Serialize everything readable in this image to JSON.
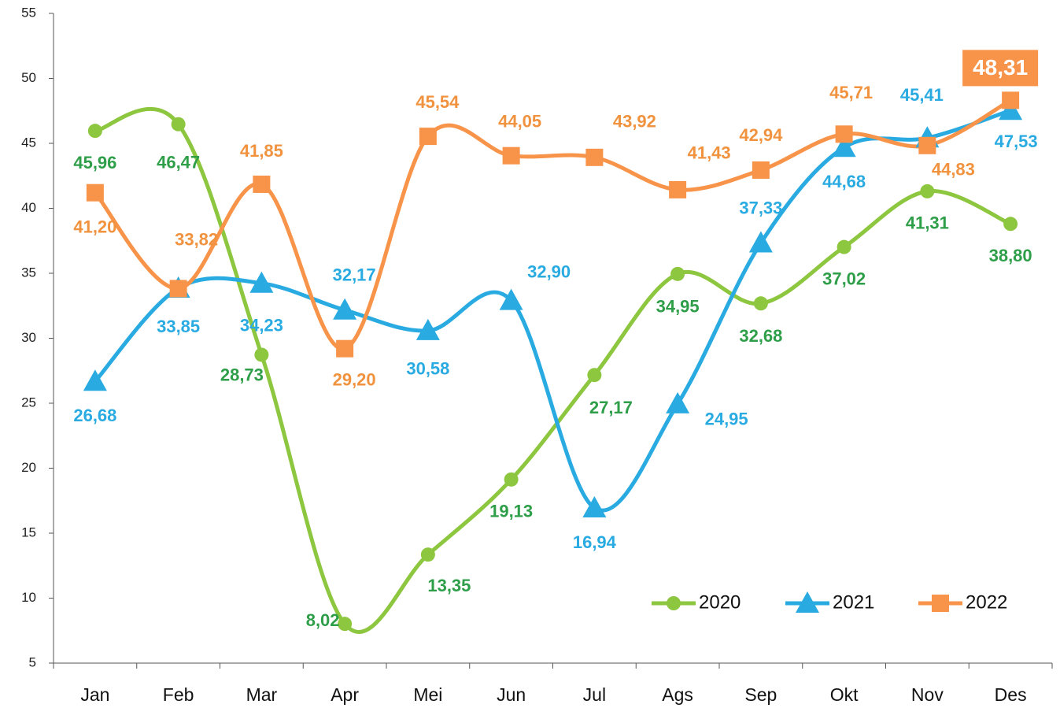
{
  "chart_data": {
    "type": "line",
    "categories": [
      "Jan",
      "Feb",
      "Mar",
      "Apr",
      "Mei",
      "Jun",
      "Jul",
      "Ags",
      "Sep",
      "Okt",
      "Nov",
      "Des"
    ],
    "series": [
      {
        "name": "2020",
        "color": "#8dc63f",
        "label_color": "#2e9e48",
        "marker": "circle",
        "values": [
          45.96,
          46.47,
          28.73,
          8.02,
          13.35,
          19.13,
          27.17,
          34.95,
          32.68,
          37.02,
          41.31,
          38.8
        ],
        "value_labels": [
          "45,96",
          "46,47",
          "28,73",
          "8,02",
          "13,35",
          "19,13",
          "27,17",
          "34,95",
          "32,68",
          "37,02",
          "41,31",
          "38,80"
        ]
      },
      {
        "name": "2021",
        "color": "#29abe2",
        "label_color": "#29abe2",
        "marker": "triangle",
        "values": [
          26.68,
          33.85,
          34.23,
          32.17,
          30.58,
          32.9,
          16.94,
          24.95,
          37.33,
          44.68,
          45.41,
          47.53
        ],
        "value_labels": [
          "26,68",
          "33,85",
          "34,23",
          "32,17",
          "30,58",
          "32,90",
          "16,94",
          "24,95",
          "37,33",
          "44,68",
          "45,41",
          "47,53"
        ]
      },
      {
        "name": "2022",
        "color": "#f7944a",
        "label_color": "#f0923e",
        "marker": "square",
        "values": [
          41.2,
          33.82,
          41.85,
          29.2,
          45.54,
          44.05,
          43.92,
          41.43,
          42.94,
          45.71,
          44.83,
          48.31
        ],
        "value_labels": [
          "41,20",
          "33,82",
          "41,85",
          "29,20",
          "45,54",
          "44,05",
          "43,92",
          "41,43",
          "42,94",
          "45,71",
          "44,83",
          "48,31"
        ]
      }
    ],
    "ylim": [
      5,
      55
    ],
    "yticks": [
      5,
      10,
      15,
      20,
      25,
      30,
      35,
      40,
      45,
      50,
      55
    ],
    "legend": "bottom-right"
  }
}
